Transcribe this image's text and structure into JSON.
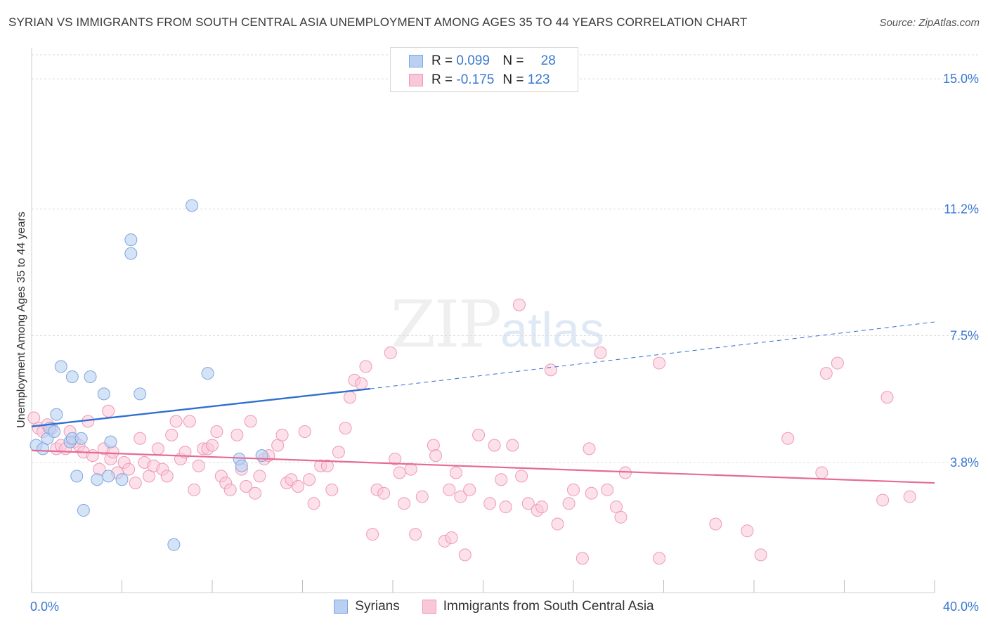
{
  "title": "SYRIAN VS IMMIGRANTS FROM SOUTH CENTRAL ASIA UNEMPLOYMENT AMONG AGES 35 TO 44 YEARS CORRELATION CHART",
  "source": "Source: ZipAtlas.com",
  "watermark": {
    "zip": "ZIP",
    "atlas": "atlas"
  },
  "legend": {
    "rows": [
      {
        "r_label": "R =",
        "r_value": "0.099",
        "n_label": "N =",
        "n_value": "28"
      },
      {
        "r_label": "R =",
        "r_value": "-0.175",
        "n_label": "N =",
        "n_value": "123"
      }
    ]
  },
  "bottom_legend": {
    "series1": "Syrians",
    "series2": "Immigrants from South Central Asia"
  },
  "colors": {
    "blue_fill": "#b9d0f2",
    "blue_stroke": "#7ea6e0",
    "blue_line": "#2f6fd0",
    "pink_fill": "#f9c8d8",
    "pink_stroke": "#ef98b5",
    "pink_line": "#e46b96",
    "tick_text": "#3a78d0"
  },
  "chart_data": {
    "type": "scatter",
    "title": "SYRIAN VS IMMIGRANTS FROM SOUTH CENTRAL ASIA UNEMPLOYMENT AMONG AGES 35 TO 44 YEARS CORRELATION CHART",
    "xlabel": "",
    "ylabel": "Unemployment Among Ages 35 to 44 years",
    "xlim": [
      0,
      40
    ],
    "ylim": [
      0,
      15.7
    ],
    "x_tick_labels": [
      "0.0%",
      "40.0%"
    ],
    "y_ticks": [
      3.8,
      7.5,
      11.2,
      15.0
    ],
    "y_tick_labels": [
      "3.8%",
      "7.5%",
      "11.2%",
      "15.0%"
    ],
    "grid": true,
    "legend_position": "top-center",
    "series": [
      {
        "name": "Syrians",
        "R": 0.099,
        "N": 28,
        "trend": {
          "x0": 0,
          "y0": 4.85,
          "x1": 15,
          "y1": 5.95,
          "dashed_to_x": 40,
          "dashed_to_y": 7.9
        },
        "points": [
          [
            0.2,
            4.3
          ],
          [
            0.5,
            4.2
          ],
          [
            0.7,
            4.5
          ],
          [
            0.8,
            4.8
          ],
          [
            1.0,
            4.7
          ],
          [
            1.1,
            5.2
          ],
          [
            1.3,
            6.6
          ],
          [
            1.7,
            4.4
          ],
          [
            1.8,
            4.5
          ],
          [
            1.8,
            6.3
          ],
          [
            2.0,
            3.4
          ],
          [
            2.2,
            4.5
          ],
          [
            2.3,
            2.4
          ],
          [
            2.6,
            6.3
          ],
          [
            2.9,
            3.3
          ],
          [
            3.2,
            5.8
          ],
          [
            3.4,
            3.4
          ],
          [
            3.5,
            4.4
          ],
          [
            4.0,
            3.3
          ],
          [
            4.4,
            10.3
          ],
          [
            4.4,
            9.9
          ],
          [
            4.8,
            5.8
          ],
          [
            6.3,
            1.4
          ],
          [
            7.1,
            11.3
          ],
          [
            7.8,
            6.4
          ],
          [
            9.2,
            3.9
          ],
          [
            9.3,
            3.7
          ],
          [
            10.2,
            4.0
          ]
        ]
      },
      {
        "name": "Immigrants from South Central Asia",
        "R": -0.175,
        "N": 123,
        "trend": {
          "x0": 0,
          "y0": 4.15,
          "x1": 40,
          "y1": 3.2
        },
        "points": [
          [
            0.1,
            5.1
          ],
          [
            0.3,
            4.8
          ],
          [
            0.5,
            4.7
          ],
          [
            0.7,
            4.9
          ],
          [
            0.9,
            4.8
          ],
          [
            1.1,
            4.2
          ],
          [
            1.3,
            4.3
          ],
          [
            1.5,
            4.2
          ],
          [
            1.7,
            4.7
          ],
          [
            1.9,
            4.4
          ],
          [
            2.1,
            4.3
          ],
          [
            2.3,
            4.1
          ],
          [
            2.5,
            5.0
          ],
          [
            2.7,
            4.0
          ],
          [
            3.0,
            3.6
          ],
          [
            3.2,
            4.2
          ],
          [
            3.4,
            5.3
          ],
          [
            3.5,
            3.9
          ],
          [
            3.6,
            4.1
          ],
          [
            3.8,
            3.5
          ],
          [
            4.1,
            3.8
          ],
          [
            4.3,
            3.6
          ],
          [
            4.6,
            3.2
          ],
          [
            4.8,
            4.5
          ],
          [
            5.0,
            3.8
          ],
          [
            5.2,
            3.4
          ],
          [
            5.4,
            3.7
          ],
          [
            5.6,
            4.2
          ],
          [
            5.8,
            3.6
          ],
          [
            6.0,
            3.4
          ],
          [
            6.2,
            4.6
          ],
          [
            6.4,
            5.0
          ],
          [
            6.6,
            3.9
          ],
          [
            6.8,
            4.1
          ],
          [
            7.0,
            5.0
          ],
          [
            7.2,
            3.0
          ],
          [
            7.4,
            3.7
          ],
          [
            7.6,
            4.2
          ],
          [
            7.8,
            4.2
          ],
          [
            8.0,
            4.3
          ],
          [
            8.2,
            4.7
          ],
          [
            8.4,
            3.4
          ],
          [
            8.6,
            3.2
          ],
          [
            8.8,
            3.0
          ],
          [
            9.1,
            4.6
          ],
          [
            9.3,
            3.6
          ],
          [
            9.5,
            3.1
          ],
          [
            9.7,
            5.0
          ],
          [
            9.9,
            2.9
          ],
          [
            10.1,
            3.4
          ],
          [
            10.3,
            3.9
          ],
          [
            10.5,
            4.0
          ],
          [
            10.9,
            4.3
          ],
          [
            11.1,
            4.6
          ],
          [
            11.3,
            3.2
          ],
          [
            11.5,
            3.3
          ],
          [
            11.8,
            3.1
          ],
          [
            12.1,
            4.7
          ],
          [
            12.3,
            3.3
          ],
          [
            12.5,
            2.6
          ],
          [
            12.8,
            3.7
          ],
          [
            13.1,
            3.7
          ],
          [
            13.3,
            3.0
          ],
          [
            13.6,
            4.1
          ],
          [
            13.9,
            4.8
          ],
          [
            14.1,
            5.7
          ],
          [
            14.3,
            6.2
          ],
          [
            14.6,
            6.1
          ],
          [
            14.8,
            6.6
          ],
          [
            15.1,
            1.7
          ],
          [
            15.3,
            3.0
          ],
          [
            15.6,
            2.9
          ],
          [
            15.9,
            7.0
          ],
          [
            16.1,
            3.9
          ],
          [
            16.3,
            3.5
          ],
          [
            16.5,
            2.6
          ],
          [
            16.8,
            3.6
          ],
          [
            17.0,
            1.7
          ],
          [
            17.3,
            2.8
          ],
          [
            17.8,
            4.3
          ],
          [
            17.9,
            4.0
          ],
          [
            18.3,
            1.5
          ],
          [
            18.5,
            3.0
          ],
          [
            18.6,
            1.6
          ],
          [
            18.8,
            3.5
          ],
          [
            19.0,
            2.8
          ],
          [
            19.2,
            1.1
          ],
          [
            19.4,
            3.0
          ],
          [
            19.8,
            4.6
          ],
          [
            20.3,
            2.6
          ],
          [
            20.5,
            4.3
          ],
          [
            20.8,
            3.3
          ],
          [
            21.0,
            2.5
          ],
          [
            21.3,
            4.3
          ],
          [
            21.6,
            8.4
          ],
          [
            21.7,
            3.4
          ],
          [
            22.0,
            2.6
          ],
          [
            22.4,
            2.4
          ],
          [
            22.6,
            2.5
          ],
          [
            23.0,
            6.5
          ],
          [
            23.3,
            2.0
          ],
          [
            23.8,
            2.6
          ],
          [
            24.0,
            3.0
          ],
          [
            24.4,
            1.0
          ],
          [
            24.7,
            4.2
          ],
          [
            24.8,
            2.9
          ],
          [
            25.2,
            7.0
          ],
          [
            25.5,
            3.0
          ],
          [
            25.9,
            2.5
          ],
          [
            26.1,
            2.2
          ],
          [
            26.3,
            3.5
          ],
          [
            27.8,
            6.7
          ],
          [
            27.8,
            1.0
          ],
          [
            30.3,
            2.0
          ],
          [
            31.7,
            1.8
          ],
          [
            32.3,
            1.1
          ],
          [
            33.5,
            4.5
          ],
          [
            35.0,
            3.5
          ],
          [
            35.2,
            6.4
          ],
          [
            35.7,
            6.7
          ],
          [
            37.7,
            2.7
          ],
          [
            37.9,
            5.7
          ],
          [
            38.9,
            2.8
          ]
        ]
      }
    ]
  }
}
